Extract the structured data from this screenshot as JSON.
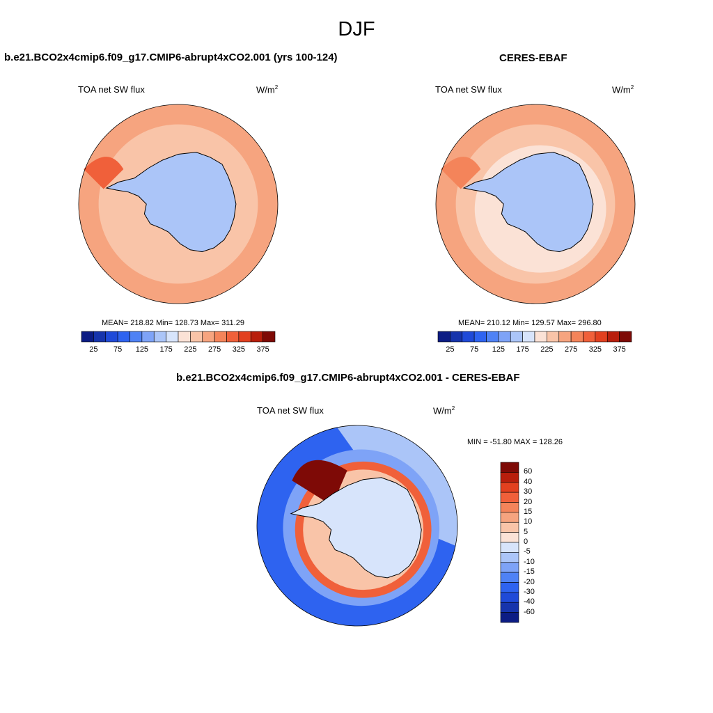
{
  "title": "DJF",
  "chart_data": [
    {
      "type": "heatmap",
      "title": "b.e21.BCO2x4cmip6.f09_g17.CMIP6-abrupt4xCO2.001 (yrs 100-124)",
      "left_label": "TOA net SW flux",
      "units": "W/m",
      "units_sup": "2",
      "stats_text": "MEAN= 218.82  Min= 128.73  Max= 311.29",
      "mean": 218.82,
      "min": 128.73,
      "max": 311.29,
      "colorbar_levels": [
        "25",
        "75",
        "125",
        "175",
        "225",
        "275",
        "325",
        "375"
      ],
      "colors": [
        "#0c1c84",
        "#1634ac",
        "#1f4ad8",
        "#2e63f0",
        "#4f82f5",
        "#7ea3f7",
        "#abc5f8",
        "#d7e4fb",
        "#fbe2d6",
        "#f9c4a8",
        "#f6a47f",
        "#f4845a",
        "#f0603a",
        "#e2401f",
        "#b81e0c",
        "#7e0a06"
      ],
      "region_values": {
        "ocean_outer": 265,
        "ocean_mid": 240,
        "ocean_band": 225,
        "antarctica": 150,
        "peninsula_band": 300
      }
    },
    {
      "type": "heatmap",
      "title": "CERES-EBAF",
      "left_label": "TOA net SW flux",
      "units": "W/m",
      "units_sup": "2",
      "stats_text": "MEAN= 210.12  Min= 129.57  Max= 296.80",
      "mean": 210.12,
      "min": 129.57,
      "max": 296.8,
      "colorbar_levels": [
        "25",
        "75",
        "125",
        "175",
        "225",
        "275",
        "325",
        "375"
      ],
      "colors": [
        "#0c1c84",
        "#1634ac",
        "#1f4ad8",
        "#2e63f0",
        "#4f82f5",
        "#7ea3f7",
        "#abc5f8",
        "#d7e4fb",
        "#fbe2d6",
        "#f9c4a8",
        "#f6a47f",
        "#f4845a",
        "#f0603a",
        "#e2401f",
        "#b81e0c",
        "#7e0a06"
      ],
      "region_values": {
        "ocean_outer": 260,
        "ocean_mid": 230,
        "ocean_band": 200,
        "antarctica": 150,
        "peninsula_band": 280
      }
    },
    {
      "type": "heatmap",
      "title": "b.e21.BCO2x4cmip6.f09_g17.CMIP6-abrupt4xCO2.001 - CERES-EBAF",
      "left_label": "TOA net SW flux",
      "units": "W/m",
      "units_sup": "2",
      "stats_text": "MIN = -51.80 MAX = 128.26",
      "min": -51.8,
      "max": 128.26,
      "colorbar_levels": [
        "60",
        "40",
        "30",
        "20",
        "15",
        "10",
        "5",
        "0",
        "-5",
        "-10",
        "-15",
        "-20",
        "-30",
        "-40",
        "-60"
      ],
      "colors": [
        "#7e0a06",
        "#b81e0c",
        "#e2401f",
        "#f0603a",
        "#f4845a",
        "#f6a47f",
        "#f9c4a8",
        "#fbe2d6",
        "#d7e4fb",
        "#abc5f8",
        "#7ea3f7",
        "#4f82f5",
        "#2e63f0",
        "#1f4ad8",
        "#1634ac",
        "#0c1c84"
      ]
    }
  ]
}
